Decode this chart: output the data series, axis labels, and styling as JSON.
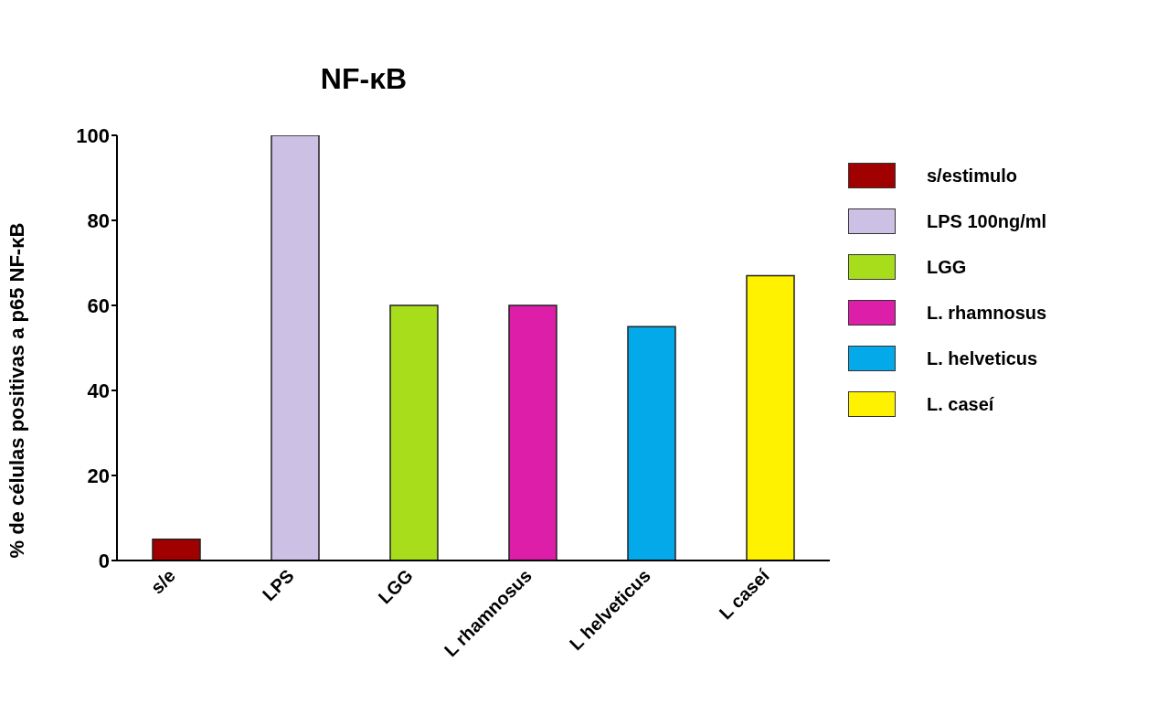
{
  "chart_data": {
    "type": "bar",
    "title": "NF-κB",
    "ylabel": "% de células positivas a p65 NF-κB",
    "categories": [
      "s/e",
      "LPS",
      "LGG",
      "L rhamnosus",
      "L helveticus",
      "L caseí"
    ],
    "stacked": true,
    "series": [
      {
        "name": "s/estimulo",
        "color": "#a00000",
        "values": [
          5,
          null,
          null,
          null,
          null,
          null
        ]
      },
      {
        "name": "LPS 100ng/ml",
        "color": "#ccc0e4",
        "values": [
          null,
          100,
          null,
          null,
          null,
          null
        ]
      },
      {
        "name": "LGG",
        "color": "#a8dd1c",
        "values": [
          null,
          null,
          60,
          null,
          null,
          null
        ]
      },
      {
        "name": "L. rhamnosus",
        "color": "#dd1ea8",
        "values": [
          null,
          null,
          null,
          60,
          null,
          null
        ]
      },
      {
        "name": "L. helveticus",
        "color": "#03a9e8",
        "values": [
          null,
          null,
          null,
          null,
          55,
          null
        ]
      },
      {
        "name": "L. caseí",
        "color": "#fff200",
        "values": [
          null,
          null,
          null,
          null,
          null,
          67
        ]
      }
    ],
    "ylim": [
      0,
      100
    ],
    "yticks": [
      0,
      20,
      40,
      60,
      80,
      100
    ],
    "legend": "right"
  }
}
